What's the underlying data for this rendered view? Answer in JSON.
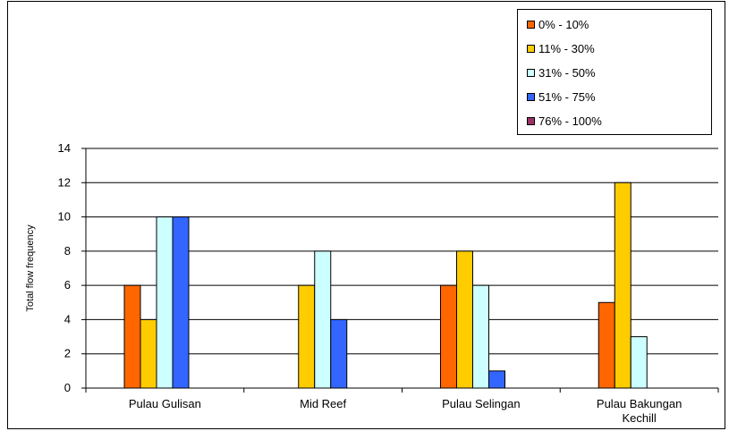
{
  "chart_data": {
    "type": "bar",
    "title": "",
    "xlabel": "",
    "ylabel": "Total flow frequency",
    "ylim": [
      0,
      14
    ],
    "yticks": [
      "0",
      "2",
      "4",
      "6",
      "8",
      "10",
      "12",
      "14"
    ],
    "categories": [
      "Pulau Gulisan",
      "Mid Reef",
      "Pulau Selingan",
      "Pulau Bakungan Kechill"
    ],
    "series": [
      {
        "name": "0% - 10%",
        "color": "#ff6600",
        "values": [
          6,
          0,
          6,
          5
        ]
      },
      {
        "name": "11% - 30%",
        "color": "#ffcc00",
        "values": [
          4,
          6,
          8,
          12
        ]
      },
      {
        "name": "31% - 50%",
        "color": "#ccffff",
        "values": [
          10,
          8,
          6,
          3
        ]
      },
      {
        "name": "51% - 75%",
        "color": "#3366ff",
        "values": [
          10,
          4,
          1,
          0
        ]
      },
      {
        "name": "76% - 100%",
        "color": "#993366",
        "values": [
          0,
          0,
          0,
          0
        ]
      }
    ],
    "grid": true,
    "legend_position": "top-right"
  }
}
